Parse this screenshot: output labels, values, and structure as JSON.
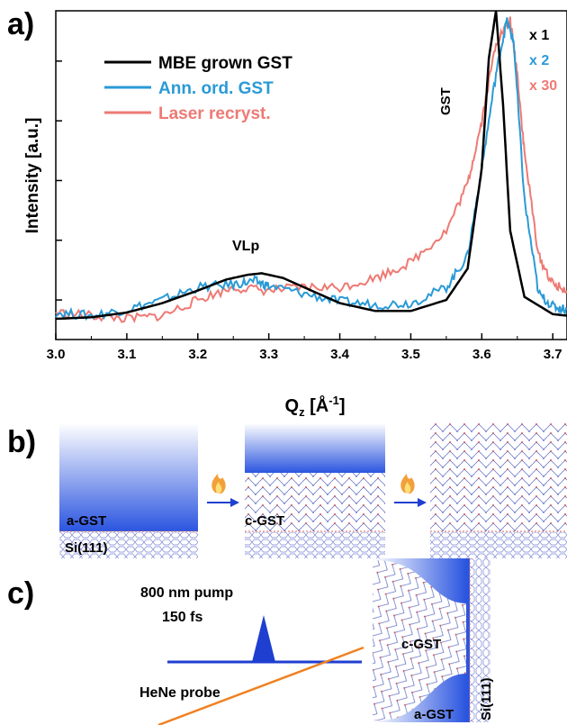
{
  "panels": {
    "a": "a)",
    "b": "b)",
    "c": "c)"
  },
  "chart_data": {
    "type": "line",
    "xlabel": "Q",
    "xlabel_sub": "z",
    "xlabel_unit": " [Å",
    "xlabel_sup": "-1",
    "xlabel_close": "]",
    "ylabel": "Intensity [a.u.]",
    "xlim": [
      3.0,
      3.72
    ],
    "ylim": [
      0,
      1.0
    ],
    "x_ticks": [
      "3.0",
      "3.1",
      "3.2",
      "3.3",
      "3.4",
      "3.5",
      "3.6",
      "3.7"
    ],
    "x_tick_values": [
      3.0,
      3.1,
      3.2,
      3.3,
      3.4,
      3.5,
      3.6,
      3.7
    ],
    "annotations": {
      "vlp": "VLp",
      "gst": "GST"
    },
    "series": [
      {
        "name": "MBE grown GST",
        "color": "#000000",
        "scale": "x 1",
        "x": [
          3.0,
          3.05,
          3.1,
          3.15,
          3.2,
          3.24,
          3.27,
          3.29,
          3.32,
          3.36,
          3.4,
          3.45,
          3.5,
          3.55,
          3.58,
          3.6,
          3.61,
          3.62,
          3.63,
          3.64,
          3.66,
          3.7,
          3.72
        ],
        "values": [
          0.02,
          0.025,
          0.04,
          0.07,
          0.11,
          0.145,
          0.16,
          0.165,
          0.15,
          0.11,
          0.07,
          0.045,
          0.045,
          0.08,
          0.18,
          0.5,
          0.85,
          1.0,
          0.7,
          0.3,
          0.09,
          0.035,
          0.03
        ]
      },
      {
        "name": "Ann. ord. GST",
        "color": "#2a9ad6",
        "scale": "x 2",
        "x": [
          3.0,
          3.05,
          3.1,
          3.15,
          3.2,
          3.25,
          3.28,
          3.3,
          3.35,
          3.4,
          3.45,
          3.5,
          3.55,
          3.58,
          3.6,
          3.62,
          3.635,
          3.645,
          3.66,
          3.68,
          3.7,
          3.72
        ],
        "values": [
          0.04,
          0.03,
          0.05,
          0.08,
          0.12,
          0.13,
          0.14,
          0.125,
          0.1,
          0.075,
          0.065,
          0.07,
          0.12,
          0.22,
          0.5,
          0.8,
          0.97,
          0.9,
          0.4,
          0.1,
          0.06,
          0.05
        ]
      },
      {
        "name": "Laser recryst.",
        "color": "#ee7a74",
        "scale": "x 30",
        "x": [
          3.0,
          3.05,
          3.1,
          3.15,
          3.2,
          3.25,
          3.3,
          3.35,
          3.4,
          3.45,
          3.5,
          3.55,
          3.58,
          3.6,
          3.62,
          3.64,
          3.65,
          3.66,
          3.68,
          3.7,
          3.72
        ],
        "values": [
          0.04,
          0.03,
          0.02,
          0.03,
          0.08,
          0.12,
          0.11,
          0.12,
          0.12,
          0.15,
          0.2,
          0.3,
          0.45,
          0.65,
          0.9,
          0.97,
          0.8,
          0.55,
          0.22,
          0.13,
          0.11
        ]
      }
    ]
  },
  "panel_b": {
    "a_gst": "a-GST",
    "c_gst": "c-GST",
    "si": "Si(111)"
  },
  "panel_c": {
    "pump": "800 nm pump",
    "pulse": "150 fs",
    "probe": "HeNe probe",
    "c_gst": "c-GST",
    "a_gst": "a-GST",
    "si": "Si(111)"
  },
  "colors": {
    "film_blue": "#2b55e0",
    "lattice_blue": "#5a6fd0",
    "lattice_red": "#d06060",
    "probe": "#f08020"
  }
}
